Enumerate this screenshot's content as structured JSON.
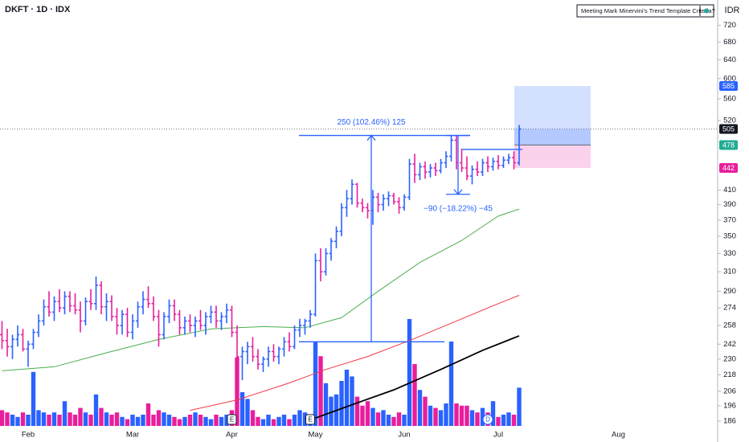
{
  "chart_data": {
    "type": "ohlc",
    "title": "DKFT · 1D · IDX",
    "currency": "IDR",
    "indicator_label": "Meeting Mark Minervini's Trend Template Criteria?",
    "log": true,
    "ylim": [
      182,
      785
    ],
    "yticks": [
      720,
      680,
      640,
      600,
      560,
      520,
      410,
      390,
      370,
      350,
      330,
      310,
      290,
      274,
      258,
      242,
      230,
      218,
      206,
      196,
      186
    ],
    "up_color": "#2962ff",
    "down_color": "#e91e9c",
    "volume_ylim": [
      0,
      100
    ],
    "categories": [
      null,
      null,
      null,
      null,
      null,
      "Feb",
      null,
      null,
      null,
      null,
      null,
      null,
      null,
      null,
      null,
      null,
      null,
      null,
      null,
      null,
      null,
      null,
      null,
      null,
      null,
      "Mar",
      null,
      null,
      null,
      null,
      null,
      null,
      null,
      null,
      null,
      null,
      null,
      null,
      null,
      null,
      null,
      null,
      null,
      null,
      "Apr",
      null,
      null,
      null,
      null,
      null,
      null,
      null,
      null,
      null,
      null,
      null,
      null,
      null,
      null,
      null,
      "May",
      null,
      null,
      null,
      null,
      null,
      null,
      null,
      null,
      null,
      null,
      null,
      null,
      null,
      null,
      null,
      null,
      "Jun",
      null,
      null,
      null,
      null,
      null,
      null,
      null,
      null,
      null,
      null,
      null,
      null,
      null,
      null,
      null,
      null,
      null,
      "Jul",
      null,
      null,
      null,
      null,
      null,
      null,
      null,
      null,
      null,
      null,
      null,
      null,
      null,
      null,
      null,
      null,
      null,
      null,
      null,
      null,
      null,
      null,
      "Aug"
    ],
    "ohlc": [
      [
        250,
        262,
        238,
        245
      ],
      [
        245,
        255,
        232,
        240
      ],
      [
        240,
        250,
        230,
        246
      ],
      [
        246,
        258,
        240,
        250
      ],
      [
        250,
        255,
        236,
        238
      ],
      [
        238,
        245,
        224,
        242
      ],
      [
        242,
        255,
        238,
        252
      ],
      [
        252,
        268,
        248,
        262
      ],
      [
        262,
        282,
        258,
        275
      ],
      [
        275,
        290,
        266,
        270
      ],
      [
        270,
        285,
        262,
        280
      ],
      [
        280,
        292,
        270,
        274
      ],
      [
        274,
        290,
        268,
        285
      ],
      [
        285,
        290,
        270,
        276
      ],
      [
        276,
        288,
        268,
        272
      ],
      [
        272,
        280,
        252,
        262
      ],
      [
        262,
        284,
        258,
        280
      ],
      [
        280,
        292,
        272,
        278
      ],
      [
        278,
        305,
        272,
        296
      ],
      [
        296,
        300,
        268,
        275
      ],
      [
        275,
        288,
        262,
        280
      ],
      [
        280,
        286,
        262,
        266
      ],
      [
        266,
        274,
        250,
        258
      ],
      [
        258,
        272,
        250,
        268
      ],
      [
        268,
        274,
        248,
        252
      ],
      [
        252,
        268,
        246,
        262
      ],
      [
        262,
        280,
        256,
        275
      ],
      [
        275,
        290,
        268,
        282
      ],
      [
        282,
        295,
        274,
        278
      ],
      [
        278,
        285,
        262,
        266
      ],
      [
        266,
        272,
        240,
        250
      ],
      [
        250,
        270,
        246,
        266
      ],
      [
        266,
        282,
        260,
        276
      ],
      [
        276,
        282,
        262,
        268
      ],
      [
        268,
        272,
        250,
        256
      ],
      [
        256,
        266,
        250,
        262
      ],
      [
        262,
        268,
        252,
        258
      ],
      [
        258,
        266,
        248,
        262
      ],
      [
        262,
        272,
        254,
        258
      ],
      [
        258,
        270,
        250,
        266
      ],
      [
        266,
        276,
        260,
        270
      ],
      [
        270,
        276,
        256,
        262
      ],
      [
        262,
        270,
        254,
        266
      ],
      [
        266,
        278,
        260,
        272
      ],
      [
        272,
        276,
        248,
        252
      ],
      [
        252,
        258,
        226,
        232
      ],
      [
        232,
        240,
        214,
        236
      ],
      [
        236,
        244,
        226,
        240
      ],
      [
        240,
        248,
        228,
        232
      ],
      [
        232,
        238,
        222,
        226
      ],
      [
        226,
        232,
        220,
        230
      ],
      [
        230,
        240,
        224,
        236
      ],
      [
        236,
        242,
        228,
        232
      ],
      [
        232,
        240,
        226,
        238
      ],
      [
        238,
        248,
        232,
        244
      ],
      [
        244,
        252,
        236,
        240
      ],
      [
        240,
        258,
        238,
        254
      ],
      [
        254,
        264,
        248,
        258
      ],
      [
        258,
        264,
        250,
        262
      ],
      [
        262,
        272,
        256,
        268
      ],
      [
        268,
        330,
        266,
        322
      ],
      [
        322,
        336,
        300,
        310
      ],
      [
        310,
        336,
        306,
        330
      ],
      [
        330,
        348,
        322,
        344
      ],
      [
        344,
        362,
        336,
        356
      ],
      [
        356,
        392,
        350,
        386
      ],
      [
        386,
        410,
        374,
        398
      ],
      [
        398,
        425,
        390,
        418
      ],
      [
        418,
        420,
        386,
        392
      ],
      [
        392,
        398,
        380,
        386
      ],
      [
        386,
        392,
        372,
        382
      ],
      [
        382,
        410,
        364,
        400
      ],
      [
        400,
        406,
        380,
        390
      ],
      [
        390,
        404,
        382,
        398
      ],
      [
        398,
        408,
        388,
        402
      ],
      [
        402,
        406,
        390,
        394
      ],
      [
        394,
        400,
        378,
        386
      ],
      [
        386,
        404,
        382,
        400
      ],
      [
        400,
        456,
        396,
        448
      ],
      [
        448,
        464,
        420,
        432
      ],
      [
        432,
        450,
        424,
        444
      ],
      [
        444,
        452,
        426,
        436
      ],
      [
        436,
        448,
        428,
        442
      ],
      [
        442,
        450,
        430,
        438
      ],
      [
        438,
        456,
        434,
        450
      ],
      [
        450,
        468,
        442,
        460
      ],
      [
        460,
        494,
        452,
        486
      ],
      [
        486,
        494,
        440,
        450
      ],
      [
        450,
        472,
        436,
        442
      ],
      [
        442,
        460,
        424,
        430
      ],
      [
        430,
        446,
        418,
        440
      ],
      [
        440,
        452,
        430,
        436
      ],
      [
        436,
        456,
        430,
        450
      ],
      [
        450,
        460,
        436,
        444
      ],
      [
        444,
        458,
        438,
        452
      ],
      [
        452,
        462,
        440,
        446
      ],
      [
        446,
        460,
        442,
        454
      ],
      [
        454,
        464,
        448,
        458
      ],
      [
        458,
        468,
        440,
        450
      ],
      [
        450,
        512,
        446,
        505
      ],
      null,
      null,
      null,
      null,
      null,
      null,
      null,
      null,
      null,
      null,
      null,
      null,
      null,
      null,
      null,
      null,
      null,
      null,
      null
    ],
    "volume": [
      14,
      12,
      10,
      8,
      12,
      10,
      48,
      14,
      12,
      10,
      12,
      10,
      22,
      12,
      10,
      16,
      12,
      10,
      28,
      16,
      12,
      10,
      12,
      8,
      6,
      10,
      8,
      10,
      20,
      10,
      14,
      12,
      10,
      8,
      6,
      8,
      10,
      12,
      10,
      8,
      6,
      10,
      8,
      10,
      14,
      61,
      30,
      24,
      14,
      8,
      6,
      10,
      6,
      8,
      10,
      6,
      10,
      14,
      12,
      10,
      75,
      62,
      38,
      26,
      28,
      40,
      50,
      44,
      26,
      18,
      22,
      16,
      12,
      14,
      10,
      8,
      12,
      10,
      95,
      55,
      32,
      26,
      18,
      16,
      14,
      20,
      75,
      20,
      18,
      18,
      14,
      12,
      16,
      12,
      22,
      8,
      10,
      12,
      10,
      34,
      null,
      null,
      null,
      null,
      null,
      null,
      null,
      null,
      null,
      null,
      null,
      null,
      null,
      null,
      null,
      null,
      null,
      null,
      null
    ],
    "moving_averages": [
      {
        "color": "#4caf50",
        "x": [
          0,
          10,
          20,
          30,
          40,
          50,
          58,
          65,
          72,
          80,
          88,
          95,
          99
        ],
        "values": [
          221,
          224,
          235,
          246,
          255,
          257,
          256,
          265,
          290,
          320,
          345,
          375,
          384
        ]
      },
      {
        "color": "#f23645",
        "x": [
          36,
          45,
          55,
          62,
          70,
          78,
          86,
          94,
          99
        ],
        "values": [
          193,
          200,
          212,
          222,
          232,
          245,
          260,
          276,
          286
        ]
      },
      {
        "color": "#000000",
        "x": [
          60,
          68,
          75,
          84,
          92,
          99
        ],
        "values": [
          188,
          198,
          207,
          222,
          237,
          249
        ]
      }
    ],
    "events": [
      {
        "index": 44,
        "label": "E"
      },
      {
        "index": 59,
        "label": "E"
      },
      {
        "index": 93,
        "label": "D"
      }
    ],
    "measures": [
      {
        "label": "250 (102.46%) 125",
        "from": 244,
        "to": 494
      },
      {
        "label": "−90 (−18.22%) −45",
        "from": 494,
        "to": 404
      }
    ],
    "level_line": 471,
    "last_price": 505,
    "position": {
      "target": 585,
      "entry": 478,
      "stop": 442
    }
  }
}
